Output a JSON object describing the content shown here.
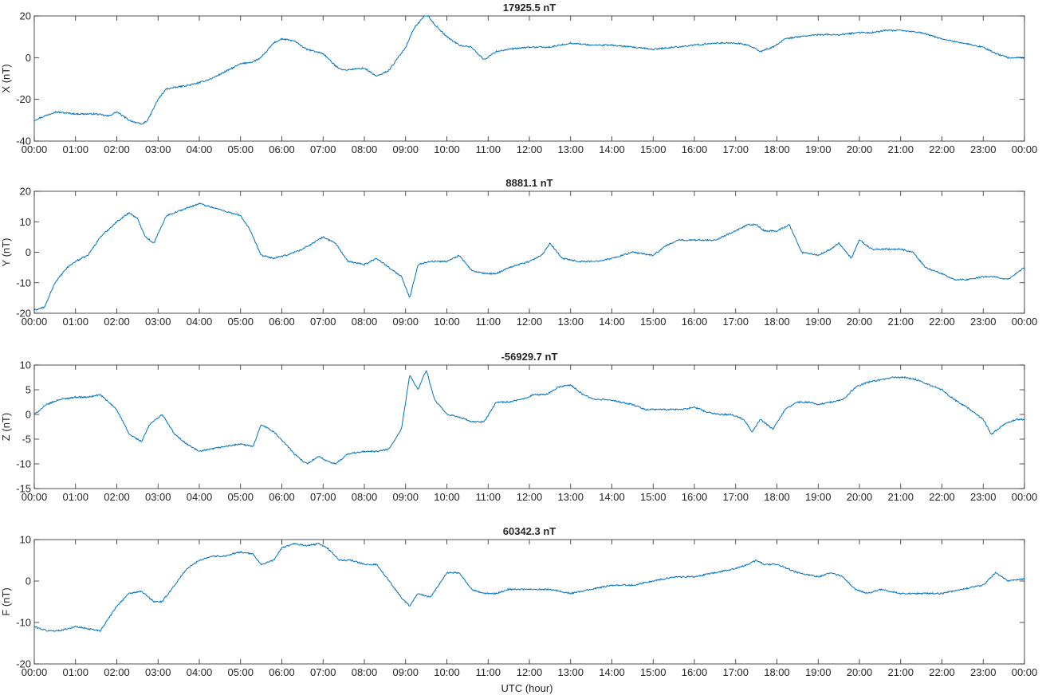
{
  "figure": {
    "xlabel": "UTC (hour)",
    "x_tick_labels": [
      "00:00",
      "01:00",
      "02:00",
      "03:00",
      "04:00",
      "05:00",
      "06:00",
      "07:00",
      "08:00",
      "09:00",
      "10:00",
      "11:00",
      "12:00",
      "13:00",
      "14:00",
      "15:00",
      "16:00",
      "17:00",
      "18:00",
      "19:00",
      "20:00",
      "21:00",
      "22:00",
      "23:00",
      "00:00"
    ],
    "line_color": "#0072BD"
  },
  "chart_data": [
    {
      "type": "line",
      "title": "17925.5 nT",
      "ylabel": "X (nT)",
      "xlim": [
        0,
        24
      ],
      "ylim": [
        -40,
        20
      ],
      "y_ticks": [
        -40,
        -20,
        0,
        20
      ],
      "grid": false,
      "x": [
        0,
        0.5,
        1,
        1.5,
        1.8,
        2,
        2.3,
        2.6,
        2.75,
        3,
        3.2,
        3.5,
        3.8,
        4,
        4.3,
        4.6,
        5,
        5.3,
        5.5,
        5.8,
        6,
        6.3,
        6.6,
        7,
        7.3,
        7.5,
        8,
        8.3,
        8.6,
        9,
        9.2,
        9.5,
        9.7,
        10,
        10.3,
        10.6,
        10.9,
        11.2,
        11.5,
        12,
        12.5,
        13,
        13.5,
        14,
        14.5,
        15,
        15.5,
        16,
        16.5,
        17,
        17.3,
        17.6,
        17.9,
        18.2,
        18.5,
        19,
        19.5,
        20,
        20.3,
        20.6,
        21,
        21.5,
        22,
        22.5,
        23,
        23.3,
        23.6,
        24
      ],
      "y": [
        -30,
        -26,
        -27,
        -27,
        -28,
        -26,
        -30,
        -32,
        -30,
        -20,
        -15,
        -14,
        -13,
        -12,
        -10,
        -7,
        -3,
        -2,
        0,
        7,
        9,
        8,
        4,
        2,
        -4,
        -6,
        -5,
        -9,
        -6,
        5,
        14,
        21,
        16,
        10,
        6,
        5,
        -1,
        3,
        4,
        5,
        5,
        7,
        6,
        6,
        5,
        4,
        5,
        6,
        7,
        7,
        6,
        3,
        5,
        9,
        10,
        11,
        11,
        12,
        12,
        13,
        13,
        12,
        9,
        7,
        5,
        2,
        0,
        0
      ]
    },
    {
      "type": "line",
      "title": "8881.1 nT",
      "ylabel": "Y (nT)",
      "xlim": [
        0,
        24
      ],
      "ylim": [
        -20,
        20
      ],
      "y_ticks": [
        -20,
        -10,
        0,
        10,
        20
      ],
      "grid": false,
      "x": [
        0,
        0.25,
        0.5,
        0.8,
        1,
        1.3,
        1.6,
        2,
        2.3,
        2.5,
        2.7,
        2.9,
        3.2,
        3.6,
        4,
        4.5,
        5,
        5.2,
        5.5,
        5.8,
        6.1,
        6.5,
        7,
        7.3,
        7.6,
        8,
        8.3,
        8.6,
        8.9,
        9.1,
        9.3,
        9.6,
        10,
        10.3,
        10.6,
        10.9,
        11.2,
        11.5,
        12,
        12.3,
        12.5,
        12.8,
        13.2,
        13.6,
        14,
        14.5,
        15,
        15.3,
        15.6,
        16,
        16.5,
        17,
        17.3,
        17.5,
        17.7,
        18,
        18.3,
        18.6,
        19,
        19.3,
        19.5,
        19.8,
        20,
        20.3,
        20.6,
        21,
        21.3,
        21.6,
        22,
        22.3,
        22.6,
        23,
        23.3,
        23.6,
        24
      ],
      "y": [
        -19,
        -18,
        -10,
        -5,
        -3,
        -1,
        5,
        10,
        13,
        11,
        5,
        3,
        12,
        14,
        16,
        14,
        12,
        8,
        -1,
        -2,
        -1,
        1,
        5,
        3,
        -3,
        -4,
        -2,
        -5,
        -8,
        -15,
        -4,
        -3,
        -3,
        -1,
        -6,
        -7,
        -7,
        -5,
        -3,
        -1,
        3,
        -2,
        -3,
        -3,
        -2,
        0,
        -1,
        2,
        4,
        4,
        4,
        7,
        9,
        9,
        7,
        7,
        9,
        0,
        -1,
        1,
        3,
        -2,
        4,
        1,
        1,
        1,
        0,
        -5,
        -7,
        -9,
        -9,
        -8,
        -8,
        -9,
        -5
      ]
    },
    {
      "type": "line",
      "title": "-56929.7 nT",
      "ylabel": "Z (nT)",
      "xlim": [
        0,
        24
      ],
      "ylim": [
        -15,
        10
      ],
      "y_ticks": [
        -15,
        -10,
        -5,
        0,
        5,
        10
      ],
      "grid": false,
      "x": [
        0,
        0.3,
        0.6,
        1,
        1.3,
        1.6,
        2,
        2.3,
        2.6,
        2.8,
        3.1,
        3.4,
        3.7,
        4,
        4.3,
        4.6,
        5,
        5.3,
        5.5,
        5.8,
        6.1,
        6.3,
        6.6,
        6.9,
        7.1,
        7.3,
        7.6,
        8,
        8.3,
        8.6,
        8.9,
        9.1,
        9.3,
        9.5,
        9.7,
        10,
        10.3,
        10.6,
        10.9,
        11.2,
        11.5,
        11.8,
        12.1,
        12.4,
        12.7,
        13,
        13.3,
        13.6,
        13.9,
        14.2,
        14.5,
        14.8,
        15.1,
        15.4,
        15.7,
        16,
        16.3,
        16.6,
        16.9,
        17.2,
        17.4,
        17.6,
        17.9,
        18.2,
        18.5,
        18.8,
        19,
        19.3,
        19.6,
        19.9,
        20.2,
        20.5,
        20.8,
        21.1,
        21.4,
        21.7,
        22,
        22.3,
        22.6,
        23,
        23.2,
        23.5,
        23.8,
        24
      ],
      "y": [
        0,
        2,
        3,
        3.5,
        3.5,
        4,
        1,
        -4,
        -5.5,
        -2,
        0,
        -4,
        -6,
        -7.5,
        -7,
        -6.5,
        -6,
        -6.5,
        -2,
        -3.5,
        -6,
        -8,
        -10,
        -8.5,
        -9.5,
        -10,
        -8,
        -7.5,
        -7.5,
        -7,
        -3,
        8,
        5,
        9,
        3,
        0,
        -0.5,
        -1.5,
        -1.5,
        2.5,
        2.5,
        3,
        4,
        4,
        5.5,
        6,
        4,
        3,
        3,
        2.5,
        2,
        1,
        1,
        1,
        1,
        1.5,
        0.5,
        0,
        0,
        -1,
        -3.5,
        -1,
        -3,
        1,
        2.5,
        2.5,
        2,
        2.5,
        3,
        5.5,
        6.5,
        7,
        7.5,
        7.5,
        7,
        6,
        5,
        3,
        1.5,
        -1,
        -4,
        -2,
        -1,
        -1
      ]
    },
    {
      "type": "line",
      "title": "60342.3 nT",
      "ylabel": "F (nT)",
      "xlim": [
        0,
        24
      ],
      "ylim": [
        -20,
        10
      ],
      "y_ticks": [
        -20,
        -10,
        0,
        10
      ],
      "grid": false,
      "x": [
        0,
        0.3,
        0.6,
        1,
        1.3,
        1.6,
        1.8,
        2,
        2.3,
        2.6,
        2.9,
        3.1,
        3.4,
        3.7,
        4,
        4.3,
        4.6,
        5,
        5.3,
        5.5,
        5.8,
        6,
        6.3,
        6.6,
        6.9,
        7.1,
        7.4,
        7.7,
        8,
        8.3,
        8.6,
        8.9,
        9.1,
        9.3,
        9.6,
        10,
        10.3,
        10.6,
        10.9,
        11.2,
        11.5,
        12,
        12.5,
        13,
        13.5,
        14,
        14.5,
        15,
        15.5,
        16,
        16.5,
        17,
        17.3,
        17.5,
        17.7,
        18,
        18.5,
        19,
        19.3,
        19.6,
        19.9,
        20.2,
        20.5,
        21,
        21.5,
        22,
        22.5,
        23,
        23.3,
        23.6,
        24
      ],
      "y": [
        -11,
        -12,
        -12,
        -11,
        -11.5,
        -12,
        -9,
        -6,
        -3,
        -2.5,
        -5,
        -5,
        -1,
        3,
        5,
        6,
        6,
        7,
        6.5,
        4,
        5,
        8,
        9,
        8.5,
        9,
        8,
        5,
        5,
        4,
        4,
        0,
        -4,
        -6,
        -3,
        -4,
        2,
        2,
        -2,
        -3,
        -3,
        -2,
        -2,
        -2,
        -3,
        -2,
        -1,
        -1,
        0,
        1,
        1,
        2,
        3,
        4,
        5,
        4,
        4,
        2,
        1,
        2,
        1,
        -2,
        -3,
        -2,
        -3,
        -3,
        -3,
        -2,
        -1,
        2,
        0,
        0.5
      ]
    }
  ]
}
